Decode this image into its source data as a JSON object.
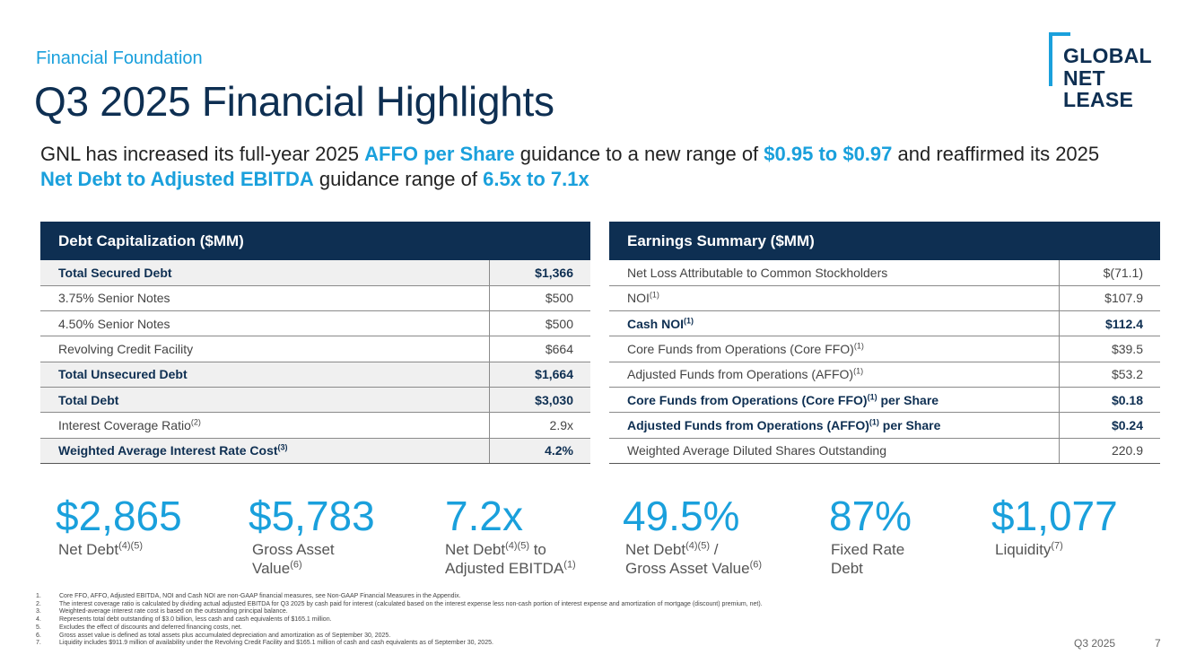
{
  "header": {
    "kicker": "Financial Foundation",
    "title": "Q3 2025 Financial Highlights"
  },
  "logo": {
    "line1": "GLOBAL",
    "line2": "NET",
    "line3": "LEASE"
  },
  "headline": {
    "p1": "GNL has increased its full-year 2025 ",
    "h1": "AFFO per Share",
    "p2": " guidance to a new range of ",
    "h2": "$0.95 to $0.97",
    "p3": " and reaffirmed its 2025 ",
    "h3": "Net Debt to Adjusted EBITDA",
    "p4": " guidance range of ",
    "h4": "6.5x to 7.1x"
  },
  "debt_table": {
    "title": "Debt Capitalization ($MM)",
    "rows": [
      {
        "label": "Total Secured Debt",
        "sup": "",
        "value": "$1,366"
      },
      {
        "label": "3.75% Senior Notes",
        "sup": "",
        "value": "$500"
      },
      {
        "label": "4.50% Senior Notes",
        "sup": "",
        "value": "$500"
      },
      {
        "label": "Revolving Credit Facility",
        "sup": "",
        "value": "$664"
      },
      {
        "label": "Total Unsecured Debt",
        "sup": "",
        "value": "$1,664"
      },
      {
        "label": "Total Debt",
        "sup": "",
        "value": "$3,030"
      },
      {
        "label": "Interest Coverage Ratio",
        "sup": "(2)",
        "value": "2.9x"
      },
      {
        "label": "Weighted Average Interest Rate Cost",
        "sup": "(3)",
        "value": "4.2%"
      }
    ]
  },
  "earnings_table": {
    "title": "Earnings Summary ($MM)",
    "rows": [
      {
        "label": "Net Loss Attributable to Common Stockholders",
        "sup": "",
        "suffix": "",
        "value": "$(71.1)"
      },
      {
        "label": "NOI",
        "sup": "(1)",
        "suffix": "",
        "value": "$107.9"
      },
      {
        "label": "Cash NOI",
        "sup": "(1)",
        "suffix": "",
        "value": "$112.4"
      },
      {
        "label": "Core Funds from Operations (Core FFO)",
        "sup": "(1)",
        "suffix": "",
        "value": "$39.5"
      },
      {
        "label": "Adjusted Funds from Operations (AFFO)",
        "sup": "(1)",
        "suffix": "",
        "value": "$53.2"
      },
      {
        "label": "Core Funds from Operations (Core FFO)",
        "sup": "(1)",
        "suffix": " per Share",
        "value": "$0.18"
      },
      {
        "label": "Adjusted Funds from Operations (AFFO)",
        "sup": "(1)",
        "suffix": " per Share",
        "value": "$0.24"
      },
      {
        "label": "Weighted Average Diluted Shares Outstanding",
        "sup": "",
        "suffix": "",
        "value": "220.9"
      }
    ]
  },
  "metrics": [
    {
      "value": "$2,865",
      "l1": "Net Debt",
      "s1": "(4)(5)",
      "l2": "",
      "l3": "",
      "s3": ""
    },
    {
      "value": "$5,783",
      "l1": "Gross Asset",
      "s1": "",
      "l2": "Value",
      "s2": "(6)"
    },
    {
      "value": "7.2x",
      "l1": "Net Debt",
      "s1": "(4)(5)",
      "l1b": " to",
      "l2": "Adjusted EBITDA",
      "s2": "(1)"
    },
    {
      "value": "49.5%",
      "l1": "Net Debt",
      "s1": "(4)(5)",
      "l1b": " /",
      "l2": "Gross Asset Value",
      "s2": "(6)"
    },
    {
      "value": "87%",
      "l1": "Fixed Rate",
      "s1": "",
      "l2": "Debt",
      "s2": ""
    },
    {
      "value": "$1,077",
      "l1": "Liquidity",
      "s1": "(7)",
      "l2": "",
      "s2": ""
    }
  ],
  "footnotes": [
    {
      "n": "1.",
      "text": "Core FFO, AFFO, Adjusted EBITDA, NOI and Cash NOI are non-GAAP financial measures, see Non-GAAP Financial Measures in the Appendix."
    },
    {
      "n": "2.",
      "text": "The interest coverage ratio is calculated by dividing actual adjusted EBITDA for Q3 2025 by cash paid for interest (calculated based on the interest expense less non-cash portion of interest expense and amortization of mortgage (discount) premium, net)."
    },
    {
      "n": "3.",
      "text": "Weighted-average interest rate cost is based on the outstanding principal balance."
    },
    {
      "n": "4.",
      "text": "Represents total debt outstanding of $3.0 billion, less cash and cash equivalents of $165.1 million."
    },
    {
      "n": "5.",
      "text": "Excludes the effect of discounts and deferred financing costs, net."
    },
    {
      "n": "6.",
      "text": "Gross asset value is defined as total assets plus accumulated depreciation and amortization as of September 30, 2025."
    },
    {
      "n": "7.",
      "text": "Liquidity includes $911.9 million of availability under the Revolving Credit Facility and $165.1 million of cash and cash equivalents as of September 30, 2025."
    }
  ],
  "footer": {
    "period": "Q3 2025",
    "page": "7"
  }
}
